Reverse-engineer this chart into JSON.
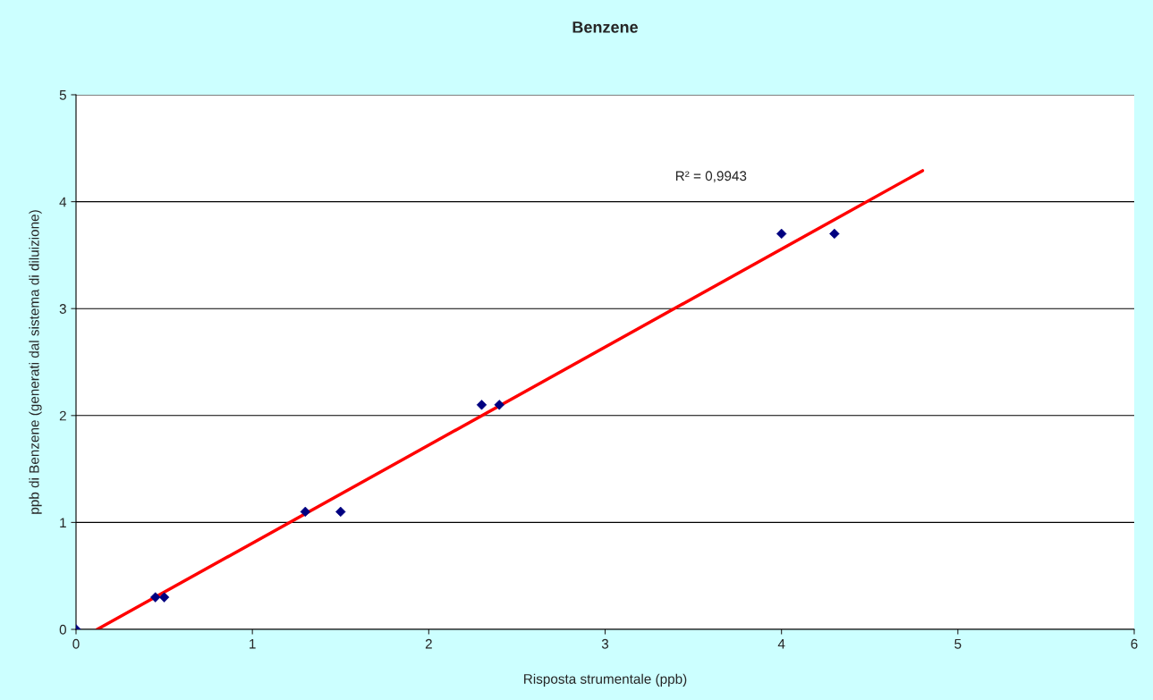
{
  "chart_data": {
    "type": "scatter",
    "title": "Benzene",
    "xlabel": "Risposta strumentale (ppb)",
    "ylabel": "ppb di Benzene (generati dal sistema di diluizione)",
    "series": [
      {
        "color": "#000080",
        "marker": "diamond",
        "x": [
          0,
          0.45,
          0.5,
          1.3,
          1.5,
          2.3,
          2.4,
          4.0,
          4.3
        ],
        "values": [
          0,
          0.3,
          0.3,
          1.1,
          1.1,
          2.1,
          2.1,
          3.7,
          3.7
        ]
      },
      {
        "type": "line",
        "color": "#ff0000",
        "marker": "none",
        "x": [
          0.12,
          4.8
        ],
        "values": [
          0,
          4.29
        ]
      }
    ],
    "annotations": [
      "R² = 0,9943"
    ],
    "xlim": [
      0,
      6
    ],
    "xticks": [
      0,
      1,
      2,
      3,
      4,
      5,
      6
    ],
    "ylim": [
      0,
      5
    ],
    "yticks": [
      0,
      1,
      2,
      3,
      4,
      5
    ],
    "grid": "y",
    "legend": false
  }
}
